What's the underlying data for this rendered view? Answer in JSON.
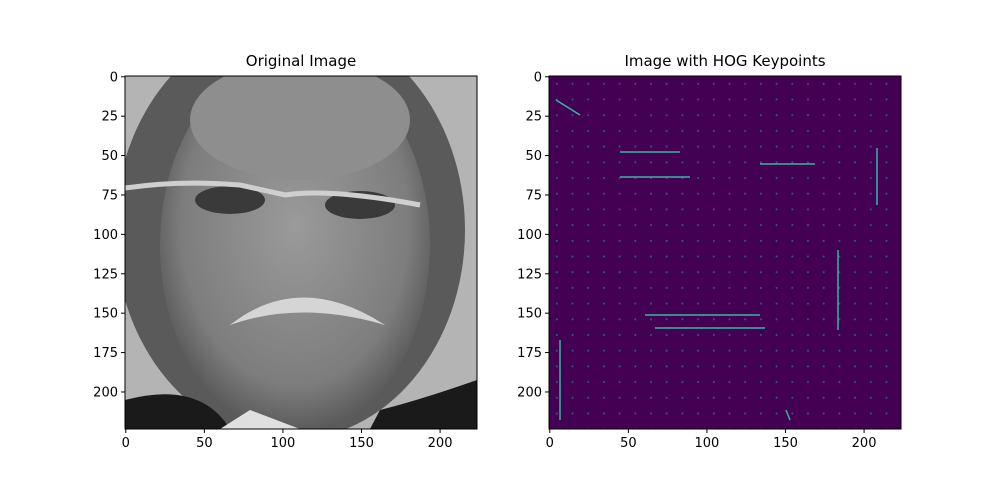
{
  "chart_data": [
    {
      "type": "image",
      "title": "Original Image",
      "xlim": [
        -0.5,
        223.5
      ],
      "ylim": [
        223.5,
        -0.5
      ],
      "xticks": [
        0,
        50,
        100,
        150,
        200
      ],
      "yticks": [
        0,
        25,
        50,
        75,
        100,
        125,
        150,
        175,
        200
      ]
    },
    {
      "type": "image",
      "title": "Image with HOG Keypoints",
      "xlim": [
        -0.5,
        223.5
      ],
      "ylim": [
        223.5,
        -0.5
      ],
      "xticks": [
        0,
        50,
        100,
        150,
        200
      ],
      "yticks": [
        0,
        25,
        50,
        75,
        100,
        125,
        150,
        175,
        200
      ]
    }
  ]
}
